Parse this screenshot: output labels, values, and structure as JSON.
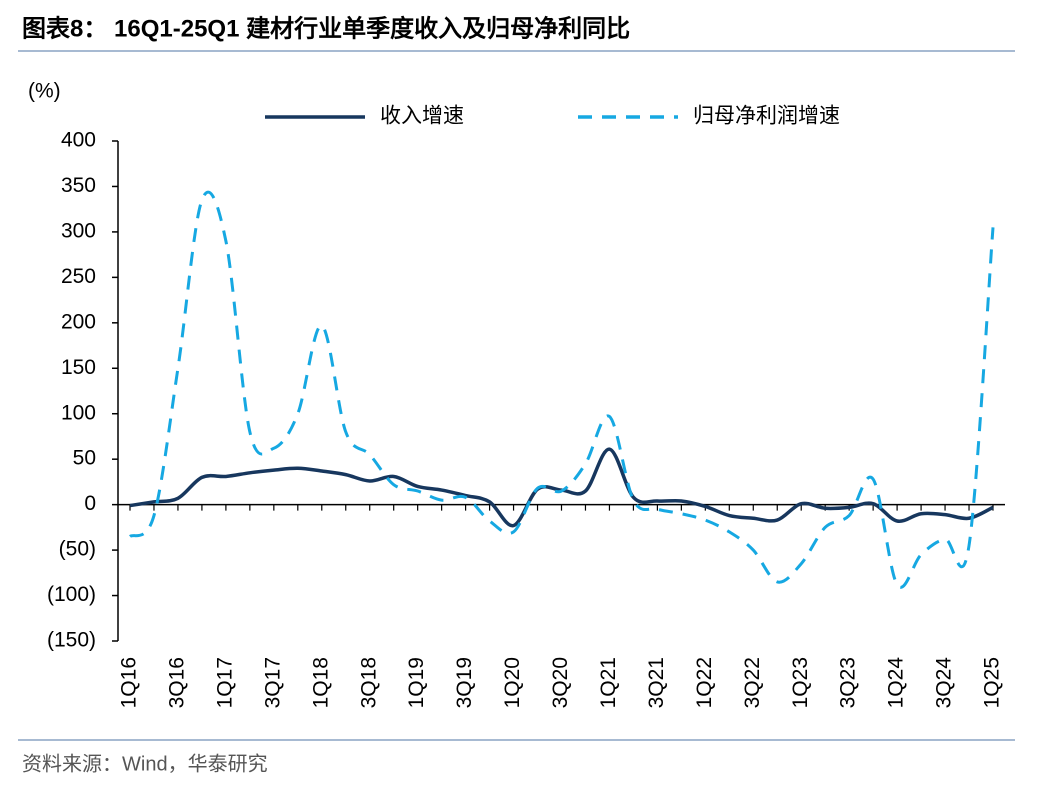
{
  "chart_data": {
    "type": "line",
    "title": "图表8： 16Q1-25Q1 建材行业单季度收入及归母净利同比",
    "y_label": "(%)",
    "source": "资料来源：Wind，华泰研究",
    "categories": [
      "1Q16",
      null,
      "3Q16",
      null,
      "1Q17",
      null,
      "3Q17",
      null,
      "1Q18",
      null,
      "3Q18",
      null,
      "1Q19",
      null,
      "3Q19",
      null,
      "1Q20",
      null,
      "3Q20",
      null,
      "1Q21",
      null,
      "3Q21",
      null,
      "1Q22",
      null,
      "3Q22",
      null,
      "1Q23",
      null,
      "3Q23",
      null,
      "1Q24",
      null,
      "3Q24",
      null,
      "1Q25"
    ],
    "series": [
      {
        "name": "收入增速",
        "color": "#17375e",
        "style": "solid",
        "values": [
          -1,
          3,
          7,
          30,
          31,
          35,
          38,
          40,
          37,
          33,
          26,
          31,
          20,
          16,
          10,
          3,
          -23,
          17,
          16,
          15,
          61,
          8,
          4,
          4,
          -2,
          -12,
          -15,
          -17,
          1,
          -4,
          -3,
          1,
          -18,
          -10,
          -11,
          -15,
          -3
        ]
      },
      {
        "name": "归母净利润增速",
        "color": "#16a8e2",
        "style": "dashed",
        "values": [
          -35,
          -12,
          150,
          335,
          290,
          80,
          62,
          100,
          197,
          80,
          55,
          22,
          15,
          5,
          8,
          -18,
          -30,
          18,
          15,
          45,
          97,
          5,
          -5,
          -10,
          -17,
          -30,
          -50,
          -85,
          -65,
          -25,
          -12,
          28,
          -88,
          -55,
          -38,
          -45,
          305
        ]
      }
    ],
    "ylim": [
      -150,
      400
    ],
    "yticks": [
      {
        "value": -150,
        "label": "(150)"
      },
      {
        "value": -100,
        "label": "(100)"
      },
      {
        "value": -50,
        "label": "(50)"
      },
      0,
      50,
      100,
      150,
      200,
      250,
      300,
      350,
      400
    ]
  }
}
